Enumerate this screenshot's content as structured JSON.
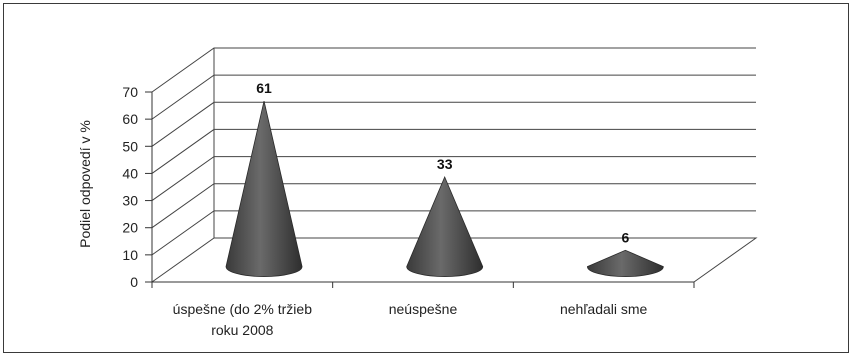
{
  "chart_data": {
    "type": "bar",
    "style": "3d-cone",
    "categories": [
      "úspešne (do 2% tržieb roku 2008",
      "neúspešne",
      "nehľadali sme"
    ],
    "category_lines": [
      [
        "úspešne (do 2% tržieb",
        "roku 2008"
      ],
      [
        "neúspešne"
      ],
      [
        "nehľadali sme"
      ]
    ],
    "values": [
      61,
      33,
      6
    ],
    "data_labels": [
      "61",
      "33",
      "6"
    ],
    "ylabel": "Podiel odpovedí v %",
    "ylim": [
      0,
      70
    ],
    "yticks": [
      0,
      10,
      20,
      30,
      40,
      50,
      60,
      70
    ],
    "grid": true,
    "legend": "none",
    "colors": {
      "cone": "#4a4a4a",
      "cone_light": "#8a8a8a",
      "grid": "#444444"
    }
  }
}
